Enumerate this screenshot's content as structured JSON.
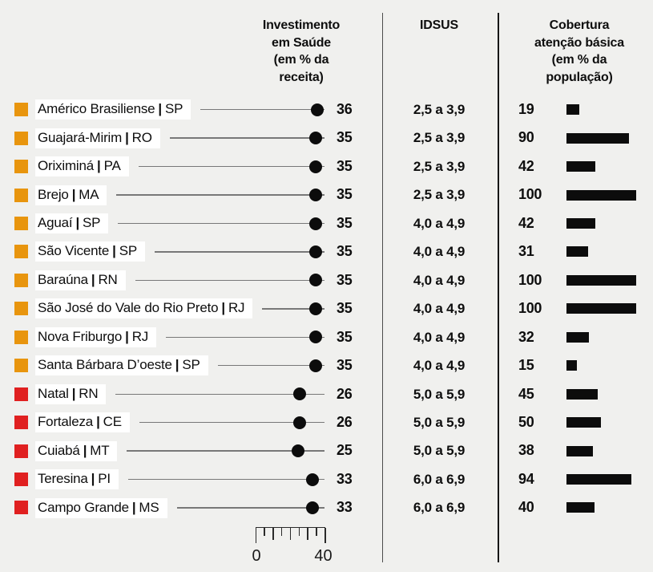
{
  "separator": "|",
  "colors": {
    "orange": "#E8950E",
    "red": "#E02020",
    "bar": "#0C0C0C",
    "background": "#F0F0EE",
    "label_background": "#FFFFFF"
  },
  "headers": {
    "investment": "Investimento\nem Saúde\n(em % da\nreceita)",
    "idsus": "IDSUS",
    "coverage": "Cobertura\natenção básica\n(em % da\npopulação)"
  },
  "axis": {
    "min_label": "0",
    "max_label": "40"
  },
  "chart_data": {
    "type": "table",
    "title": "",
    "columns": [
      "Investimento em Saúde (em % da receita)",
      "IDSUS",
      "Cobertura atenção básica (em % da população)"
    ],
    "investment_axis": {
      "min": 0,
      "max": 40,
      "tick_step": 5,
      "style": "dot-plot"
    },
    "coverage_axis": {
      "min": 0,
      "max": 100,
      "style": "bar"
    },
    "rows": [
      {
        "municipality": "Américo Brasiliense",
        "state": "SP",
        "group": "orange",
        "investimento_pct": 36,
        "idsus": "2,5 a 3,9",
        "cobertura_pct": 19
      },
      {
        "municipality": "Guajará-Mirim",
        "state": "RO",
        "group": "orange",
        "investimento_pct": 35,
        "idsus": "2,5 a 3,9",
        "cobertura_pct": 90
      },
      {
        "municipality": "Oriximiná",
        "state": "PA",
        "group": "orange",
        "investimento_pct": 35,
        "idsus": "2,5 a 3,9",
        "cobertura_pct": 42
      },
      {
        "municipality": "Brejo",
        "state": "MA",
        "group": "orange",
        "investimento_pct": 35,
        "idsus": "2,5 a 3,9",
        "cobertura_pct": 100
      },
      {
        "municipality": "Aguaí",
        "state": "SP",
        "group": "orange",
        "investimento_pct": 35,
        "idsus": "4,0 a 4,9",
        "cobertura_pct": 42
      },
      {
        "municipality": "São Vicente",
        "state": "SP",
        "group": "orange",
        "investimento_pct": 35,
        "idsus": "4,0 a 4,9",
        "cobertura_pct": 31
      },
      {
        "municipality": "Baraúna",
        "state": "RN",
        "group": "orange",
        "investimento_pct": 35,
        "idsus": "4,0 a 4,9",
        "cobertura_pct": 100
      },
      {
        "municipality": "São José do Vale do Rio Preto",
        "state": "RJ",
        "group": "orange",
        "investimento_pct": 35,
        "idsus": "4,0 a 4,9",
        "cobertura_pct": 100
      },
      {
        "municipality": "Nova Friburgo",
        "state": "RJ",
        "group": "orange",
        "investimento_pct": 35,
        "idsus": "4,0 a 4,9",
        "cobertura_pct": 32
      },
      {
        "municipality": "Santa Bárbara D’oeste",
        "state": "SP",
        "group": "orange",
        "investimento_pct": 35,
        "idsus": "4,0 a 4,9",
        "cobertura_pct": 15
      },
      {
        "municipality": "Natal",
        "state": "RN",
        "group": "red",
        "investimento_pct": 26,
        "idsus": "5,0 a 5,9",
        "cobertura_pct": 45
      },
      {
        "municipality": "Fortaleza",
        "state": "CE",
        "group": "red",
        "investimento_pct": 26,
        "idsus": "5,0 a 5,9",
        "cobertura_pct": 50
      },
      {
        "municipality": "Cuiabá",
        "state": "MT",
        "group": "red",
        "investimento_pct": 25,
        "idsus": "5,0 a 5,9",
        "cobertura_pct": 38
      },
      {
        "municipality": "Teresina",
        "state": "PI",
        "group": "red",
        "investimento_pct": 33,
        "idsus": "6,0 a 6,9",
        "cobertura_pct": 94
      },
      {
        "municipality": "Campo Grande",
        "state": "MS",
        "group": "red",
        "investimento_pct": 33,
        "idsus": "6,0 a 6,9",
        "cobertura_pct": 40
      }
    ]
  }
}
